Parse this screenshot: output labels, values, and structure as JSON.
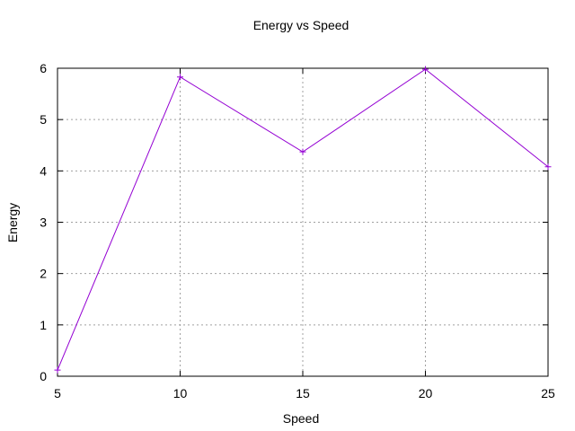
{
  "chart_data": {
    "type": "line",
    "title": "Energy vs Speed",
    "xlabel": "Speed",
    "ylabel": "Energy",
    "xlim": [
      5,
      25
    ],
    "ylim": [
      0,
      6
    ],
    "xticks": [
      5,
      10,
      15,
      20,
      25
    ],
    "yticks": [
      0,
      1,
      2,
      3,
      4,
      5,
      6
    ],
    "grid": true,
    "legend": "none",
    "series": [
      {
        "color": "#9400d3",
        "marker": "plus",
        "x": [
          5,
          10,
          15,
          20,
          25
        ],
        "y": [
          0.12,
          5.83,
          4.37,
          5.98,
          4.08
        ]
      }
    ]
  }
}
